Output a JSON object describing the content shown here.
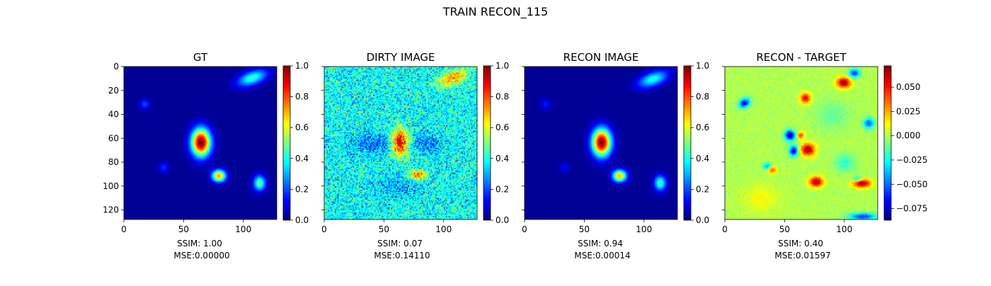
{
  "figure": {
    "suptitle": "TRAIN RECON_115"
  },
  "chart_data": [
    {
      "type": "heatmap",
      "title": "GT",
      "colormap": "jet",
      "x_ticks": [
        "0",
        "50",
        "100"
      ],
      "y_ticks": [
        "0",
        "20",
        "40",
        "60",
        "80",
        "100",
        "120"
      ],
      "xlim": [
        0,
        128
      ],
      "ylim": [
        128,
        0
      ],
      "colorbar": {
        "range": [
          0.0,
          1.0
        ],
        "ticks": [
          "0.0",
          "0.2",
          "0.4",
          "0.6",
          "0.8",
          "1.0"
        ]
      },
      "metrics": {
        "ssim": "SSIM: 1.00",
        "mse": "MSE:0.00000"
      },
      "noise": 0,
      "blobs": [
        {
          "x": 107,
          "y": 9,
          "sx": 9,
          "sy": 4,
          "rot": -20,
          "amp": 0.4
        },
        {
          "x": 64,
          "y": 63,
          "sx": 5.5,
          "sy": 8,
          "rot": 0,
          "amp": 1.0
        },
        {
          "x": 79,
          "y": 91,
          "sx": 4,
          "sy": 3.5,
          "rot": 0,
          "amp": 0.7
        },
        {
          "x": 113,
          "y": 97,
          "sx": 3.5,
          "sy": 4.5,
          "rot": 0,
          "amp": 0.45
        },
        {
          "x": 17,
          "y": 31,
          "sx": 3,
          "sy": 3,
          "rot": 0,
          "amp": 0.18
        },
        {
          "x": 33,
          "y": 84,
          "sx": 3,
          "sy": 3,
          "rot": 0,
          "amp": 0.15
        }
      ]
    },
    {
      "type": "heatmap",
      "title": "DIRTY IMAGE",
      "colormap": "jet",
      "x_ticks": [
        "0",
        "50",
        "100"
      ],
      "y_ticks": [
        "0",
        "20",
        "40",
        "60",
        "80",
        "100",
        "120"
      ],
      "xlim": [
        0,
        128
      ],
      "ylim": [
        128,
        0
      ],
      "colorbar": {
        "range": [
          0.0,
          1.0
        ],
        "ticks": [
          "0.0",
          "0.2",
          "0.4",
          "0.6",
          "0.8",
          "1.0"
        ]
      },
      "metrics": {
        "ssim": "SSIM: 0.07",
        "mse": "MSE:0.14110"
      },
      "noise": 0.12,
      "base": 0.38,
      "blobs": [
        {
          "x": 107,
          "y": 9,
          "sx": 9,
          "sy": 4,
          "rot": -20,
          "amp": 0.35
        },
        {
          "x": 63,
          "y": 63,
          "sx": 5,
          "sy": 8,
          "rot": 0,
          "amp": 0.55
        },
        {
          "x": 78,
          "y": 90,
          "sx": 5,
          "sy": 3,
          "rot": 0,
          "amp": 0.4
        },
        {
          "x": 40,
          "y": 64,
          "sx": 12,
          "sy": 6,
          "rot": 0,
          "amp": -0.15
        },
        {
          "x": 85,
          "y": 64,
          "sx": 10,
          "sy": 6,
          "rot": 0,
          "amp": -0.12
        },
        {
          "x": 60,
          "y": 100,
          "sx": 12,
          "sy": 6,
          "rot": 0,
          "amp": -0.1
        }
      ]
    },
    {
      "type": "heatmap",
      "title": "RECON IMAGE",
      "colormap": "jet",
      "x_ticks": [
        "0",
        "50",
        "100"
      ],
      "y_ticks": [
        "0",
        "20",
        "40",
        "60",
        "80",
        "100",
        "120"
      ],
      "xlim": [
        0,
        128
      ],
      "ylim": [
        128,
        0
      ],
      "colorbar": {
        "range": [
          0.0,
          1.0
        ],
        "ticks": [
          "0.0",
          "0.2",
          "0.4",
          "0.6",
          "0.8",
          "1.0"
        ]
      },
      "metrics": {
        "ssim": "SSIM: 0.94",
        "mse": "MSE:0.00014"
      },
      "noise": 0,
      "blobs": [
        {
          "x": 107,
          "y": 10,
          "sx": 9,
          "sy": 4,
          "rot": -20,
          "amp": 0.38
        },
        {
          "x": 64,
          "y": 63,
          "sx": 5.5,
          "sy": 8,
          "rot": 0,
          "amp": 0.98
        },
        {
          "x": 79,
          "y": 91,
          "sx": 4,
          "sy": 3.5,
          "rot": 0,
          "amp": 0.68
        },
        {
          "x": 113,
          "y": 97,
          "sx": 3.5,
          "sy": 4.5,
          "rot": 0,
          "amp": 0.42
        },
        {
          "x": 17,
          "y": 31,
          "sx": 3,
          "sy": 3,
          "rot": 0,
          "amp": 0.13
        },
        {
          "x": 33,
          "y": 84,
          "sx": 3,
          "sy": 3,
          "rot": 0,
          "amp": 0.1
        }
      ]
    },
    {
      "type": "heatmap",
      "title": "RECON - TARGET",
      "colormap": "jet",
      "x_ticks": [
        "0",
        "50",
        "100"
      ],
      "y_ticks": [
        "0",
        "20",
        "40",
        "60",
        "80",
        "100",
        "120"
      ],
      "xlim": [
        0,
        128
      ],
      "ylim": [
        128,
        0
      ],
      "colorbar": {
        "range": [
          -0.087,
          0.072
        ],
        "ticks": [
          "0.050",
          "0.025",
          "0.000",
          "−0.025",
          "−0.050",
          "−0.075"
        ],
        "tick_values": [
          0.05,
          0.025,
          0.0,
          -0.025,
          -0.05,
          -0.075
        ]
      },
      "metrics": {
        "ssim": "SSIM: 0.40",
        "mse": "MSE:0.01597"
      },
      "noise": 0.004,
      "base": 0.0,
      "blobs": [
        {
          "x": 16,
          "y": 30,
          "sx": 3.5,
          "sy": 2.5,
          "rot": -30,
          "amp": -0.07
        },
        {
          "x": 108,
          "y": 5,
          "sx": 3,
          "sy": 2.5,
          "rot": 0,
          "amp": -0.06
        },
        {
          "x": 99,
          "y": 13,
          "sx": 4,
          "sy": 3,
          "rot": 0,
          "amp": 0.07
        },
        {
          "x": 67,
          "y": 26,
          "sx": 3,
          "sy": 3,
          "rot": 0,
          "amp": 0.055
        },
        {
          "x": 54,
          "y": 57,
          "sx": 3,
          "sy": 3,
          "rot": 0,
          "amp": -0.085
        },
        {
          "x": 57,
          "y": 70,
          "sx": 2.5,
          "sy": 3,
          "rot": 0,
          "amp": -0.075
        },
        {
          "x": 63,
          "y": 57,
          "sx": 2,
          "sy": 2,
          "rot": 0,
          "amp": 0.045
        },
        {
          "x": 69,
          "y": 69,
          "sx": 4,
          "sy": 3.5,
          "rot": 0,
          "amp": 0.07
        },
        {
          "x": 35,
          "y": 83,
          "sx": 2.5,
          "sy": 2,
          "rot": 0,
          "amp": -0.04
        },
        {
          "x": 39,
          "y": 86,
          "sx": 2.5,
          "sy": 2,
          "rot": 0,
          "amp": 0.04
        },
        {
          "x": 76,
          "y": 96,
          "sx": 4,
          "sy": 3,
          "rot": 0,
          "amp": 0.065
        },
        {
          "x": 114,
          "y": 97,
          "sx": 5,
          "sy": 2.5,
          "rot": 0,
          "amp": 0.072
        },
        {
          "x": 111,
          "y": 94,
          "sx": 3,
          "sy": 2,
          "rot": 0,
          "amp": -0.04
        },
        {
          "x": 120,
          "y": 47,
          "sx": 3,
          "sy": 3,
          "rot": 0,
          "amp": -0.055
        },
        {
          "x": 115,
          "y": 125,
          "sx": 8,
          "sy": 2,
          "rot": 0,
          "amp": -0.06
        },
        {
          "x": 100,
          "y": 80,
          "sx": 6,
          "sy": 5,
          "rot": 0,
          "amp": -0.02
        },
        {
          "x": 30,
          "y": 110,
          "sx": 10,
          "sy": 8,
          "rot": 0,
          "amp": 0.012
        },
        {
          "x": 90,
          "y": 40,
          "sx": 10,
          "sy": 8,
          "rot": 0,
          "amp": -0.012
        }
      ]
    }
  ]
}
